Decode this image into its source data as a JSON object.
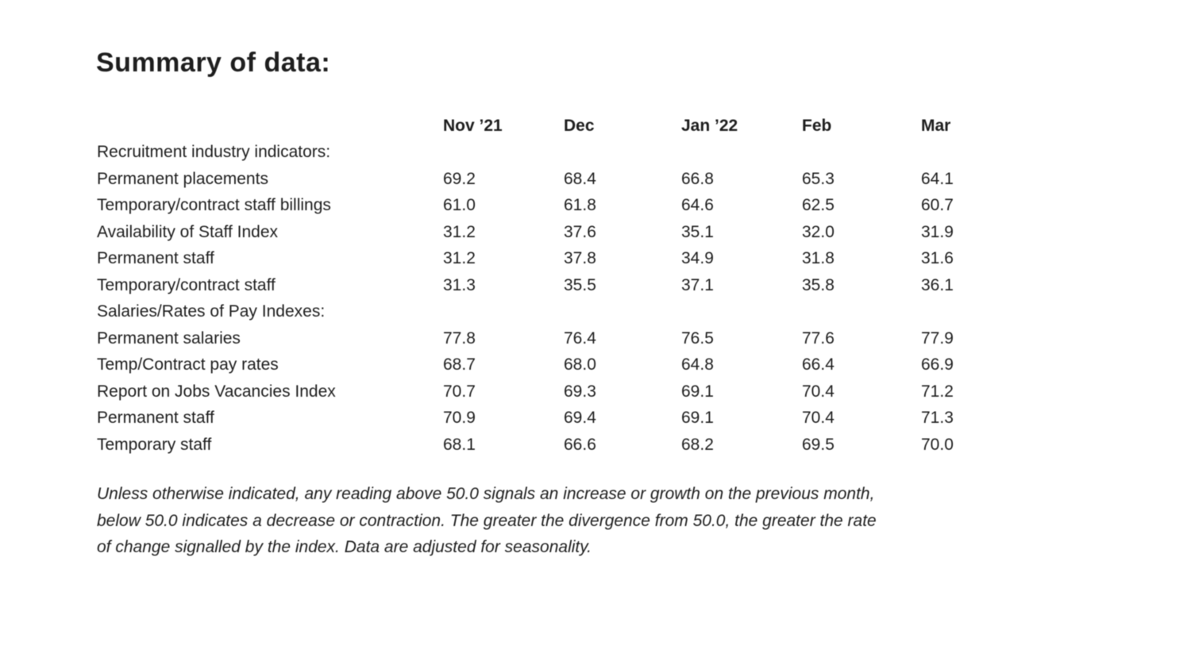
{
  "page": {
    "title": "Summary of data:"
  },
  "colors": {
    "background": "#ffffff",
    "text": "#1e1e1e"
  },
  "table": {
    "columns": [
      "Nov ’21",
      "Dec",
      "Jan ’22",
      "Feb",
      "Mar"
    ],
    "rows": [
      {
        "label": "Recruitment industry indicators:"
      },
      {
        "label": "Permanent placements",
        "values": [
          "69.2",
          "68.4",
          "66.8",
          "65.3",
          "64.1"
        ]
      },
      {
        "label": "Temporary/contract staff billings",
        "values": [
          "61.0",
          "61.8",
          "64.6",
          "62.5",
          "60.7"
        ]
      },
      {
        "label": "Availability of Staff Index",
        "values": [
          "31.2",
          "37.6",
          "35.1",
          "32.0",
          "31.9"
        ]
      },
      {
        "label": "Permanent staff",
        "values": [
          "31.2",
          "37.8",
          "34.9",
          "31.8",
          "31.6"
        ]
      },
      {
        "label": "Temporary/contract staff",
        "values": [
          "31.3",
          "35.5",
          "37.1",
          "35.8",
          "36.1"
        ]
      },
      {
        "label": "Salaries/Rates of Pay Indexes:"
      },
      {
        "label": "Permanent salaries",
        "values": [
          "77.8",
          "76.4",
          "76.5",
          "77.6",
          "77.9"
        ]
      },
      {
        "label": "Temp/Contract pay rates",
        "values": [
          "68.7",
          "68.0",
          "64.8",
          "66.4",
          "66.9"
        ]
      },
      {
        "label": "Report on Jobs Vacancies Index",
        "values": [
          "70.7",
          "69.3",
          "69.1",
          "70.4",
          "71.2"
        ]
      },
      {
        "label": "Permanent staff",
        "values": [
          "70.9",
          "69.4",
          "69.1",
          "70.4",
          "71.3"
        ]
      },
      {
        "label": "Temporary staff",
        "values": [
          "68.1",
          "66.6",
          "68.2",
          "69.5",
          "70.0"
        ]
      }
    ]
  },
  "footnote": {
    "lines": [
      "Unless otherwise indicated, any reading above 50.0 signals an increase or growth on the previous month,",
      "below 50.0 indicates a decrease or contraction. The greater the divergence from 50.0, the greater the rate",
      "of change signalled by the index. Data are adjusted for seasonality."
    ]
  }
}
